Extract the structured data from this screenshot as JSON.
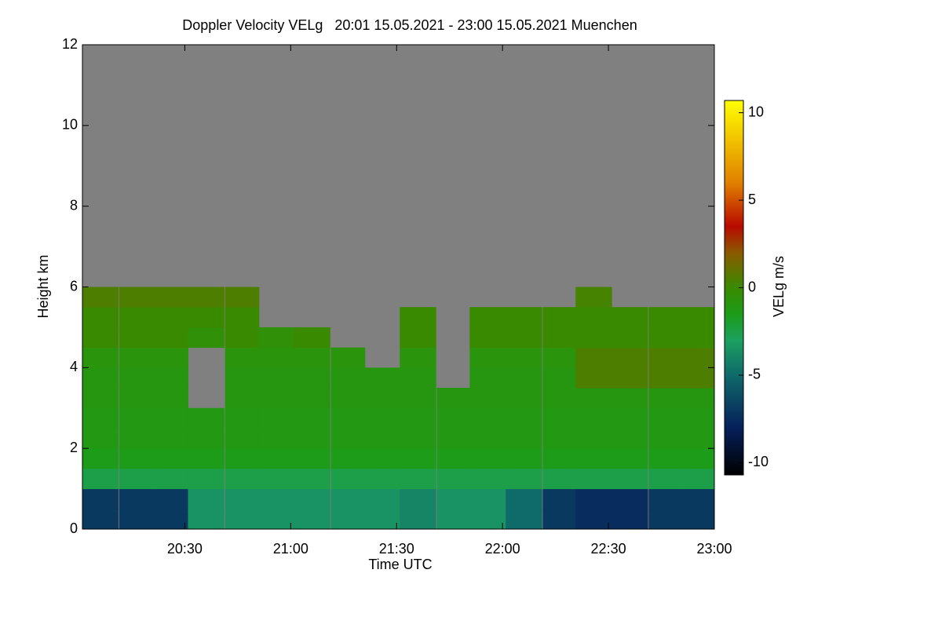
{
  "chart_data": {
    "type": "heatmap",
    "title": "Doppler Velocity VELg   20:01 15.05.2021 - 23:00 15.05.2021 Muenchen",
    "x_label": "Time UTC",
    "y_label": "Height km",
    "colorbar_label": "VELg m/s",
    "xlim": [
      20.0167,
      23.0
    ],
    "ylim": [
      0,
      12
    ],
    "xticks": [
      {
        "value": 20.5,
        "label": "20:30"
      },
      {
        "value": 21.0,
        "label": "21:00"
      },
      {
        "value": 21.5,
        "label": "21:30"
      },
      {
        "value": 22.0,
        "label": "22:00"
      },
      {
        "value": 22.5,
        "label": "22:30"
      },
      {
        "value": 23.0,
        "label": "23:00"
      }
    ],
    "yticks": [
      0,
      2,
      4,
      6,
      8,
      10,
      12
    ],
    "zlim": [
      -10.7,
      10.7
    ],
    "zticks": [
      -10,
      -5,
      0,
      5,
      10
    ],
    "colorscale": [
      [
        -10.7,
        "#000000"
      ],
      [
        -8,
        "#06205a"
      ],
      [
        -5,
        "#0f6a6a"
      ],
      [
        -3,
        "#1ca060"
      ],
      [
        -1.5,
        "#1c9c18"
      ],
      [
        0,
        "#3a8a00"
      ],
      [
        2,
        "#8a5a00"
      ],
      [
        3.5,
        "#b80a00"
      ],
      [
        6,
        "#e08000"
      ],
      [
        10.7,
        "#ffff00"
      ]
    ],
    "background_color": "#808080",
    "x": [
      20.1,
      20.27,
      20.43,
      20.6,
      20.77,
      20.93,
      21.1,
      21.27,
      21.43,
      21.6,
      21.77,
      21.93,
      22.1,
      22.27,
      22.43,
      22.6,
      22.77,
      22.93
    ],
    "y": [
      0.25,
      0.75,
      1.25,
      1.75,
      2.25,
      2.75,
      3.25,
      3.75,
      4.25,
      4.75,
      5.25,
      5.75
    ],
    "z": [
      [
        -7,
        -7,
        -7,
        -3.5,
        -3.5,
        -3.5,
        -3.5,
        -3.5,
        -3.5,
        -4,
        -3.5,
        -3.5,
        -5,
        -7,
        -7.5,
        -7.5,
        -7,
        -7
      ],
      [
        -7,
        -7,
        -7,
        -3.5,
        -3.5,
        -3.5,
        -3.5,
        -3.5,
        -3.5,
        -4,
        -3.5,
        -3.5,
        -5,
        -7,
        -7.5,
        -7.5,
        -7,
        -7
      ],
      [
        -2.5,
        -2.5,
        -2.5,
        -2.5,
        -2.5,
        -2.5,
        -2.5,
        -2.5,
        -2.5,
        -2.5,
        -2.5,
        -2.5,
        -2.5,
        -2.5,
        -2.5,
        -2.5,
        -2.5,
        -2.5
      ],
      [
        -1.5,
        -1.5,
        -1.5,
        -1.5,
        -1.5,
        -1.5,
        -1.5,
        -1.5,
        -1.5,
        -1.5,
        -1.5,
        -1.5,
        -1.5,
        -1.5,
        -1.5,
        -1.5,
        -1.5,
        -1.5
      ],
      [
        -1.2,
        -1.2,
        -1.2,
        -1.2,
        -1.2,
        -1.2,
        -1.2,
        -1.2,
        -1.2,
        -1.2,
        -1.2,
        -1.2,
        -1.2,
        -1.2,
        -1.2,
        -1.2,
        -1.2,
        -1.2
      ],
      [
        -1.2,
        -1.2,
        -1.2,
        -1.2,
        -1.2,
        -1.2,
        -1.2,
        -1.2,
        -1.2,
        -1.2,
        -1.2,
        -1.2,
        -1.2,
        -1.2,
        -1.2,
        -1.2,
        -1.2,
        -1.2
      ],
      [
        -1,
        -1,
        -1,
        null,
        -1,
        -1,
        -1,
        -1,
        -1,
        -1,
        -1,
        -1,
        -1,
        -1,
        -1,
        -1,
        -1,
        -1
      ],
      [
        -1,
        -1,
        -1,
        null,
        -1,
        -1,
        -1,
        -1,
        -1,
        -1,
        null,
        -1,
        -1,
        -1,
        0.5,
        0.5,
        0.5,
        0.5
      ],
      [
        -0.8,
        -0.8,
        -0.8,
        null,
        -0.8,
        -0.8,
        -0.8,
        -0.8,
        null,
        -0.8,
        null,
        -0.8,
        -0.8,
        -0.8,
        0.5,
        0.5,
        0.5,
        0.5
      ],
      [
        0,
        0,
        0,
        -0.5,
        0,
        -0.5,
        0,
        null,
        null,
        0,
        null,
        0,
        0,
        0,
        0,
        0,
        0,
        0
      ],
      [
        0,
        0,
        0,
        0,
        0,
        null,
        null,
        null,
        null,
        0,
        null,
        0,
        0,
        0,
        0,
        0,
        0,
        0
      ],
      [
        0.5,
        0.5,
        0.5,
        0.5,
        0.5,
        null,
        null,
        null,
        null,
        null,
        null,
        null,
        null,
        null,
        0.3,
        null,
        null,
        null
      ]
    ]
  }
}
